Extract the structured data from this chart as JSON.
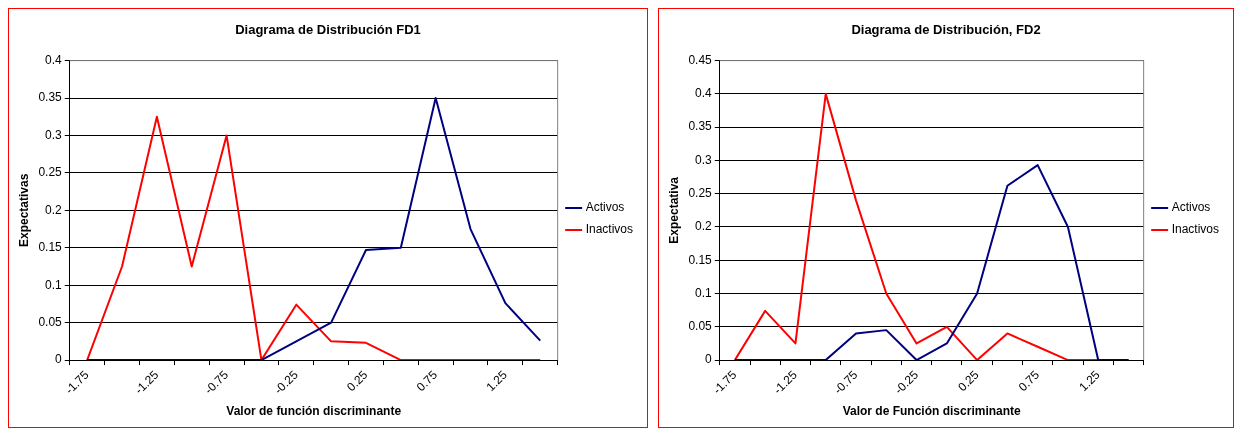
{
  "chart_data": [
    {
      "type": "line",
      "title": "Diagrama de Distribución FD1",
      "xlabel": "Valor de función discriminante",
      "ylabel": "Expectativas",
      "categories": [
        "-1.75",
        null,
        "-1.25",
        null,
        "-0.75",
        null,
        "-0.25",
        null,
        "0.25",
        null,
        "0.75",
        null,
        "1.25",
        null
      ],
      "series": [
        {
          "name": "Activos",
          "color": "#000080",
          "values": [
            0,
            0,
            0,
            0,
            0,
            0,
            0.025,
            0.05,
            0.147,
            0.15,
            0.35,
            0.175,
            0.076,
            0.026
          ]
        },
        {
          "name": "Inactivos",
          "color": "#ff0000",
          "values": [
            0,
            0.125,
            0.325,
            0.125,
            0.3,
            0,
            0.074,
            0.025,
            0.023,
            0,
            0,
            0,
            0,
            0
          ]
        }
      ],
      "ylim": [
        0,
        0.4
      ],
      "yticks": [
        0,
        0.05,
        0.1,
        0.15,
        0.2,
        0.25,
        0.3,
        0.35,
        0.4
      ],
      "grid": "y",
      "legend": "right",
      "marker": "none"
    },
    {
      "type": "line",
      "title": "Diagrama de Distribución, FD2",
      "xlabel": "Valor de Función discriminante",
      "ylabel": "Expectativa",
      "categories": [
        "-1.75",
        null,
        "-1.25",
        null,
        "-0.75",
        null,
        "-0.25",
        null,
        "0.25",
        null,
        "0.75",
        null,
        "1.25",
        null
      ],
      "series": [
        {
          "name": "Activos",
          "color": "#000080",
          "values": [
            0,
            0,
            0,
            0,
            0.04,
            0.045,
            0,
            0.025,
            0.1,
            0.262,
            0.293,
            0.2,
            0,
            0
          ]
        },
        {
          "name": "Inactivos",
          "color": "#ff0000",
          "values": [
            0,
            0.074,
            0.025,
            0.4,
            0.24,
            0.1,
            0.025,
            0.05,
            0,
            0.04,
            0.02,
            0,
            0,
            0
          ]
        }
      ],
      "ylim": [
        0,
        0.45
      ],
      "yticks": [
        0,
        0.05,
        0.1,
        0.15,
        0.2,
        0.25,
        0.3,
        0.35,
        0.4,
        0.45
      ],
      "grid": "y",
      "legend": "right",
      "marker": "none"
    }
  ]
}
